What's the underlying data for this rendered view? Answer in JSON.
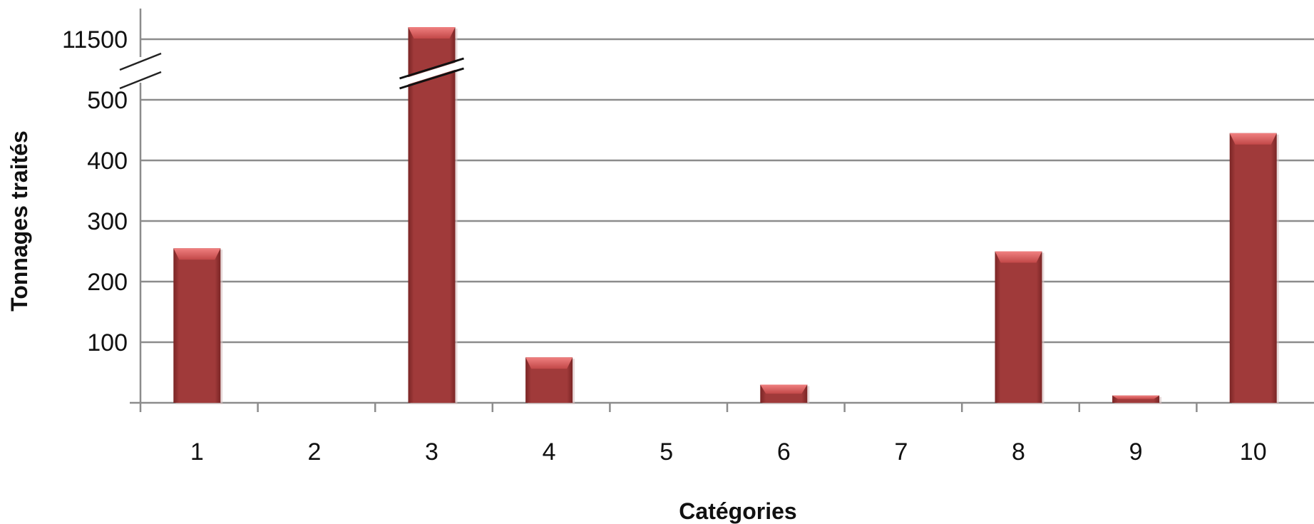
{
  "chart_data": {
    "type": "bar",
    "title": "",
    "xlabel": "Catégories",
    "ylabel": "Tonnages traités",
    "categories": [
      "1",
      "2",
      "3",
      "4",
      "5",
      "6",
      "7",
      "8",
      "9",
      "10"
    ],
    "values": [
      255,
      0,
      11550,
      75,
      0,
      30,
      0,
      250,
      12,
      445
    ],
    "y_ticks": [
      "100",
      "200",
      "300",
      "400",
      "500",
      "11500"
    ],
    "y_axis_break": true,
    "ylim": [
      0,
      11550
    ],
    "grid": true,
    "legend": "none",
    "bar_color": "#a03a3a",
    "bar_highlight_color": "#e06b6b"
  }
}
